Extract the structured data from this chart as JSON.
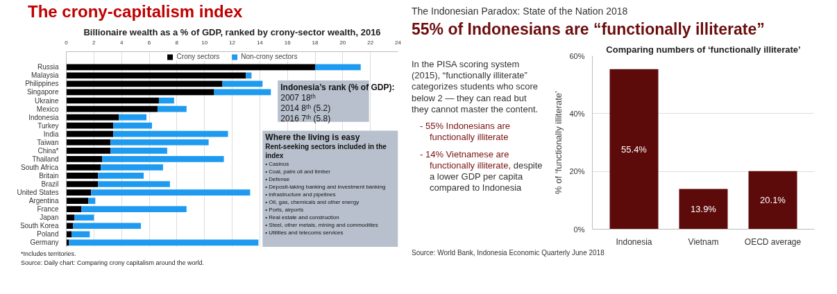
{
  "chart_data": [
    {
      "type": "bar",
      "orientation": "horizontal",
      "stacked": true,
      "title": "The crony-capitalism index",
      "subtitle": "Billionaire wealth as a % of GDP, ranked by crony-sector wealth, 2016",
      "categories": [
        "Russia",
        "Malaysia",
        "Philippines",
        "Singapore",
        "Ukraine",
        "Mexico",
        "Indonesia",
        "Turkey",
        "India",
        "Taiwan",
        "China*",
        "Thailand",
        "South Africa",
        "Britain",
        "Brazil",
        "United States",
        "Argentina",
        "France",
        "Japan",
        "South Korea",
        "Poland",
        "Germany"
      ],
      "series": [
        {
          "name": "Crony sectors",
          "color": "#000000",
          "values": [
            18.0,
            13.0,
            11.3,
            10.7,
            6.7,
            6.6,
            3.8,
            3.4,
            3.4,
            3.2,
            3.2,
            2.6,
            2.5,
            2.3,
            2.3,
            1.8,
            1.6,
            1.1,
            0.6,
            0.5,
            0.4,
            0.2
          ]
        },
        {
          "name": "Non-crony sectors",
          "color": "#1e9bf0",
          "values": [
            3.3,
            0.4,
            2.9,
            4.1,
            1.1,
            2.1,
            2.0,
            2.8,
            8.3,
            7.1,
            4.1,
            8.8,
            4.5,
            3.3,
            5.2,
            11.5,
            0.5,
            7.6,
            1.4,
            4.9,
            1.3,
            13.7
          ]
        }
      ],
      "xlim": [
        0,
        24
      ],
      "xticks": [
        0,
        2,
        4,
        6,
        8,
        10,
        12,
        14,
        16,
        18,
        20,
        22,
        24
      ],
      "grid": "x",
      "legend": "top",
      "annotations": [
        "Indonesia’s rank (% of GDP):\n2007  18ᵗʰ\n2014    8ᵗʰ (5.2)\n2016    7ᵗʰ (5.8)",
        "Where the living is easy\nRent-seeking sectors included in the\nindex\n•  Casinos\n•  Coal, palm oil and timber\n•  Defense\n•  Deposit-taking banking and investment banking\n•  infrastructure and pipelines\n•  Oil, gas, chemicals and other energy\n•  Ports, airports\n•  Real estate and construction\n•  Steel, other metals, mining and commodities\n•  Utilities and telecoms services",
        "*Includes territories.",
        "Source: Daily chart: Comparing crony capitalism around the world."
      ]
    },
    {
      "type": "bar",
      "title": "55% of Indonesians are “functionally illiterate”",
      "subtitle": "Comparing numbers of ‘functionally illiterate’",
      "ylabel": "% of ‘functionally illiterate’",
      "categories": [
        "Indonesia",
        "Vietnam",
        "OECD average"
      ],
      "values": [
        55.4,
        13.9,
        20.1
      ],
      "color": "#5c0a0a",
      "value_labels": [
        "55.4%",
        "13.9%",
        "20.1%"
      ],
      "ylim": [
        0,
        60
      ],
      "yticks": [
        {
          "value": 0,
          "label": "0%"
        },
        {
          "value": 20,
          "label": "20%"
        },
        {
          "value": 40,
          "label": "40%"
        },
        {
          "value": 60,
          "label": "60%"
        }
      ],
      "grid": "y",
      "annotations": [
        "The Indonesian Paradox: State of the Nation 2018",
        "In the PISA scoring system (2015), “functionally illiterate” categorizes students who score below 2 — they can read but they cannot master the content.",
        "-  55% Indonesians are functionally illiterate",
        "-  14% Vietnamese are functionally illiterate,",
        "despite a lower GDP per capita compared to Indonesia",
        "Source: World Bank, Indonesia Economic Quarterly June 2018"
      ]
    }
  ]
}
